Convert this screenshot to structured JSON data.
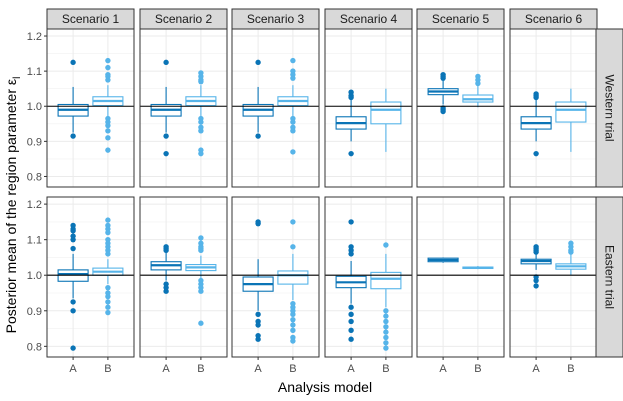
{
  "chart_data": {
    "type": "boxplot",
    "xlabel": "Analysis model",
    "ylabel": "Posterior mean of the region parameter ε",
    "ylabel_subscript": "l",
    "ylim": [
      0.77,
      1.22
    ],
    "yticks": [
      "0.8",
      "0.9",
      "1.0",
      "1.1",
      "1.2"
    ],
    "ytick_values": [
      0.8,
      0.9,
      1.0,
      1.1,
      1.2
    ],
    "reference_line": 1.0,
    "categories": [
      "A",
      "B"
    ],
    "colors": {
      "A": "#0a74b6",
      "B": "#56b4e9"
    },
    "columns": [
      "Scenario 1",
      "Scenario 2",
      "Scenario 3",
      "Scenario 4",
      "Scenario 5",
      "Scenario 6"
    ],
    "rows": [
      "Western trial",
      "Eastern trial"
    ],
    "panels": [
      [
        [
          {
            "q1": 0.972,
            "median": 0.99,
            "q3": 1.005,
            "lo": 0.925,
            "hi": 1.055,
            "outliers": [
              1.125,
              0.915
            ]
          },
          {
            "q1": 1.002,
            "median": 1.015,
            "q3": 1.027,
            "lo": 0.97,
            "hi": 1.06,
            "outliers": [
              1.13,
              1.11,
              1.09,
              1.085,
              1.075,
              0.965,
              0.955,
              0.945,
              0.93,
              0.91,
              0.875
            ]
          }
        ],
        [
          {
            "q1": 0.972,
            "median": 0.99,
            "q3": 1.005,
            "lo": 0.925,
            "hi": 1.055,
            "outliers": [
              1.125,
              0.915,
              0.865
            ]
          },
          {
            "q1": 1.002,
            "median": 1.015,
            "q3": 1.027,
            "lo": 0.97,
            "hi": 1.06,
            "outliers": [
              1.095,
              1.085,
              1.075,
              1.07,
              0.965,
              0.955,
              0.94,
              0.93,
              0.875,
              0.865
            ]
          }
        ],
        [
          {
            "q1": 0.972,
            "median": 0.99,
            "q3": 1.005,
            "lo": 0.925,
            "hi": 1.055,
            "outliers": [
              1.125,
              0.915
            ]
          },
          {
            "q1": 1.002,
            "median": 1.015,
            "q3": 1.027,
            "lo": 0.97,
            "hi": 1.06,
            "outliers": [
              1.13,
              1.1,
              1.09,
              1.08,
              0.965,
              0.955,
              0.94,
              0.93,
              0.87
            ]
          }
        ],
        [
          {
            "q1": 0.935,
            "median": 0.952,
            "q3": 0.97,
            "lo": 0.9,
            "hi": 1.02,
            "outliers": [
              1.04,
              1.03,
              1.025,
              0.865
            ]
          },
          {
            "q1": 0.95,
            "median": 0.99,
            "q3": 1.012,
            "lo": 0.87,
            "hi": 1.05,
            "outliers": []
          }
        ],
        [
          {
            "q1": 1.033,
            "median": 1.042,
            "q3": 1.05,
            "lo": 1.005,
            "hi": 1.075,
            "outliers": [
              1.09,
              1.085,
              1.08,
              0.995,
              0.99,
              0.985
            ]
          },
          {
            "q1": 1.012,
            "median": 1.02,
            "q3": 1.032,
            "lo": 0.997,
            "hi": 1.06,
            "outliers": [
              1.085,
              1.075,
              1.065
            ]
          }
        ],
        [
          {
            "q1": 0.935,
            "median": 0.952,
            "q3": 0.97,
            "lo": 0.9,
            "hi": 1.02,
            "outliers": [
              1.035,
              1.03,
              1.025,
              0.865
            ]
          },
          {
            "q1": 0.955,
            "median": 0.99,
            "q3": 1.012,
            "lo": 0.87,
            "hi": 1.05,
            "outliers": []
          }
        ]
      ],
      [
        [
          {
            "q1": 0.983,
            "median": 1.003,
            "q3": 1.015,
            "lo": 0.935,
            "hi": 1.06,
            "outliers": [
              1.14,
              1.13,
              1.125,
              1.11,
              1.1,
              1.075,
              0.925,
              0.9,
              0.795
            ]
          },
          {
            "q1": 1.0,
            "median": 1.01,
            "q3": 1.02,
            "lo": 0.975,
            "hi": 1.045,
            "outliers": [
              1.155,
              1.14,
              1.13,
              1.12,
              1.1,
              1.09,
              1.08,
              1.07,
              1.06,
              0.965,
              0.95,
              0.94,
              0.925,
              0.91,
              0.895
            ]
          }
        ],
        [
          {
            "q1": 1.015,
            "median": 1.028,
            "q3": 1.038,
            "lo": 0.985,
            "hi": 1.065,
            "outliers": [
              1.08,
              1.075,
              1.07,
              0.975,
              0.965,
              0.955
            ]
          },
          {
            "q1": 1.013,
            "median": 1.022,
            "q3": 1.03,
            "lo": 0.99,
            "hi": 1.055,
            "outliers": [
              1.105,
              1.09,
              1.08,
              1.075,
              1.07,
              0.985,
              0.975,
              0.965,
              0.955,
              0.865
            ]
          }
        ],
        [
          {
            "q1": 0.955,
            "median": 0.975,
            "q3": 0.995,
            "lo": 0.9,
            "hi": 1.045,
            "outliers": [
              1.15,
              1.145,
              0.89,
              0.87,
              0.86,
              0.83,
              0.82
            ]
          },
          {
            "q1": 0.975,
            "median": 1.0,
            "q3": 1.012,
            "lo": 0.93,
            "hi": 1.06,
            "outliers": [
              1.15,
              1.08,
              0.92,
              0.91,
              0.9,
              0.89,
              0.875,
              0.86,
              0.845,
              0.825,
              0.815
            ]
          }
        ],
        [
          {
            "q1": 0.965,
            "median": 0.98,
            "q3": 0.997,
            "lo": 0.92,
            "hi": 1.04,
            "outliers": [
              1.15,
              1.08,
              1.07,
              1.06,
              0.91,
              0.89,
              0.87,
              0.845,
              0.82
            ]
          },
          {
            "q1": 0.962,
            "median": 0.99,
            "q3": 1.008,
            "lo": 0.91,
            "hi": 1.06,
            "outliers": [
              1.085,
              0.9,
              0.885,
              0.87,
              0.855,
              0.84,
              0.825,
              0.81,
              0.795
            ]
          }
        ],
        [
          {
            "q1": 1.038,
            "median": 1.043,
            "q3": 1.048,
            "lo": 1.035,
            "hi": 1.05,
            "outliers": []
          },
          {
            "q1": 1.019,
            "median": 1.021,
            "q3": 1.023,
            "lo": 1.017,
            "hi": 1.026,
            "outliers": []
          }
        ],
        [
          {
            "q1": 1.032,
            "median": 1.04,
            "q3": 1.045,
            "lo": 1.015,
            "hi": 1.06,
            "outliers": [
              1.08,
              1.075,
              1.07,
              1.065,
              0.995,
              0.985,
              0.97
            ]
          },
          {
            "q1": 1.017,
            "median": 1.025,
            "q3": 1.032,
            "lo": 1.0,
            "hi": 1.06,
            "outliers": [
              1.09,
              1.08,
              1.07,
              1.065
            ]
          }
        ]
      ]
    ]
  }
}
